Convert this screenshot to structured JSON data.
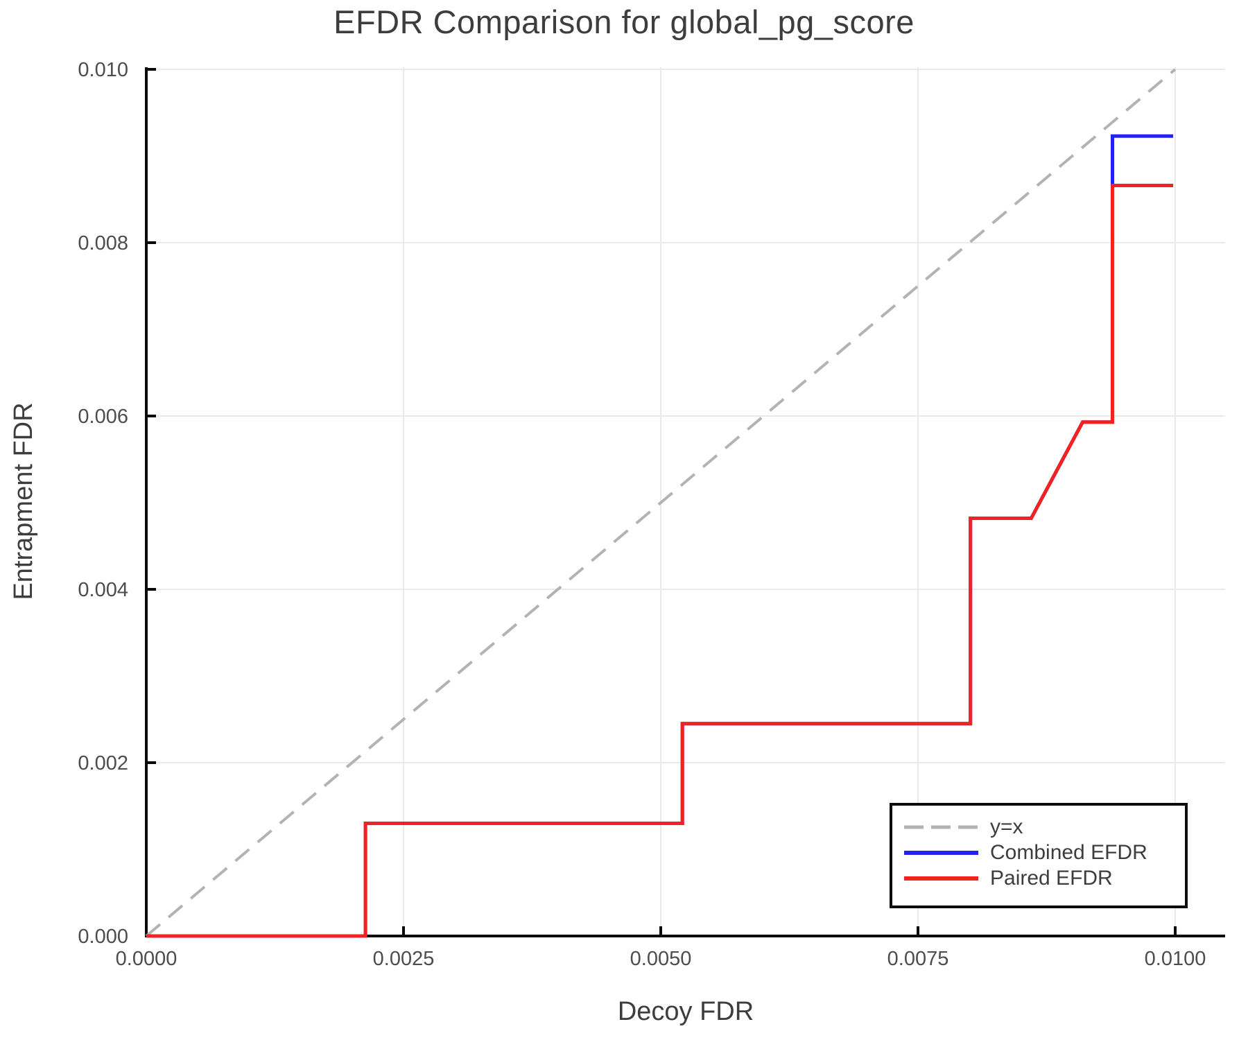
{
  "chart_data": {
    "type": "line",
    "title": "EFDR Comparison for global_pg_score",
    "xlabel": "Decoy FDR",
    "ylabel": "Entrapment FDR",
    "xlim": [
      0,
      0.010485
    ],
    "ylim": [
      0,
      0.010024
    ],
    "grid": true,
    "x_ticks": {
      "values": [
        0,
        0.0025,
        0.005,
        0.0075,
        0.01
      ],
      "labels": [
        "0.0000",
        "0.0025",
        "0.0050",
        "0.0075",
        "0.0100"
      ]
    },
    "y_ticks": {
      "values": [
        0,
        0.002,
        0.004,
        0.006,
        0.008,
        0.01
      ],
      "labels": [
        "0.000",
        "0.002",
        "0.004",
        "0.006",
        "0.008",
        "0.010"
      ]
    },
    "legend": {
      "position": "lower right"
    },
    "series": [
      {
        "name": "y=x",
        "style": "dashed",
        "color": "#b3b3b3",
        "points": [
          [
            0,
            0
          ],
          [
            0.01,
            0.01
          ]
        ]
      },
      {
        "name": "Combined EFDR",
        "style": "solid",
        "color": "#2222f2",
        "points": [
          [
            0,
            0
          ],
          [
            0.00213,
            0
          ],
          [
            0.00213,
            0.0013
          ],
          [
            0.00521,
            0.0013
          ],
          [
            0.00521,
            0.00245
          ],
          [
            0.00801,
            0.00245
          ],
          [
            0.00801,
            0.00482
          ],
          [
            0.0086,
            0.00482
          ],
          [
            0.0091,
            0.00593
          ],
          [
            0.00939,
            0.00593
          ],
          [
            0.00939,
            0.00923
          ],
          [
            0.00998,
            0.00923
          ]
        ]
      },
      {
        "name": "Paired EFDR",
        "style": "solid",
        "color": "#f22222",
        "points": [
          [
            0,
            0
          ],
          [
            0.00213,
            0
          ],
          [
            0.00213,
            0.0013
          ],
          [
            0.00521,
            0.0013
          ],
          [
            0.00521,
            0.00245
          ],
          [
            0.00801,
            0.00245
          ],
          [
            0.00801,
            0.00482
          ],
          [
            0.0086,
            0.00482
          ],
          [
            0.0091,
            0.00593
          ],
          [
            0.00939,
            0.00593
          ],
          [
            0.00939,
            0.00866
          ],
          [
            0.00998,
            0.00866
          ]
        ]
      }
    ],
    "colors": {
      "grid": "#eaeaea",
      "spine": "#0a0a0a",
      "tick_label": "#4d4d4d",
      "text": "#3d3d3d"
    }
  }
}
